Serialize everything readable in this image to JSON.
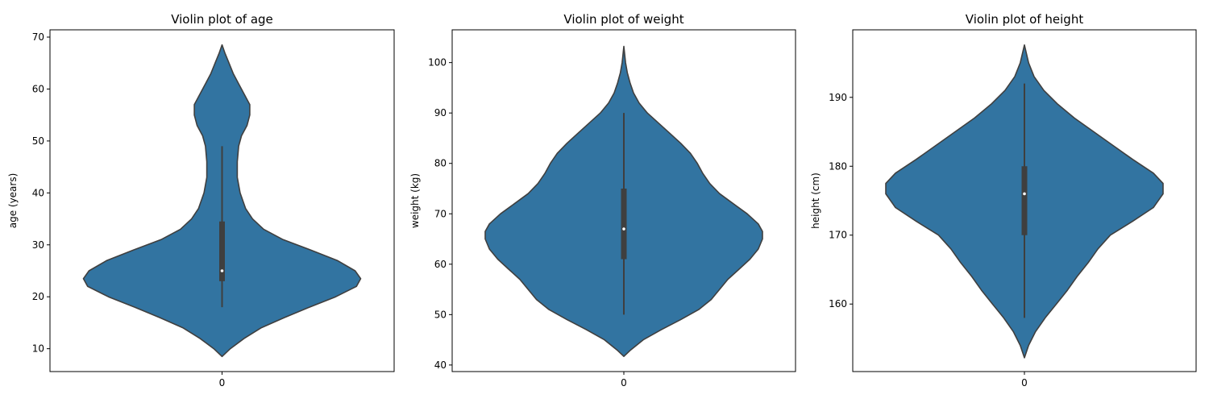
{
  "chart_data": [
    {
      "type": "violin",
      "title": "Violin plot of age",
      "xlabel": "",
      "ylabel": "age (years)",
      "categories": [
        "0"
      ],
      "ylim": [
        5.6,
        71.4
      ],
      "yticks": [
        10,
        20,
        30,
        40,
        50,
        60,
        70
      ],
      "kde_range": [
        8.5,
        68.5
      ],
      "density_profile": [
        {
          "y": 8.5,
          "w": 0.0
        },
        {
          "y": 10,
          "w": 0.06
        },
        {
          "y": 12,
          "w": 0.16
        },
        {
          "y": 14,
          "w": 0.28
        },
        {
          "y": 16,
          "w": 0.45
        },
        {
          "y": 18,
          "w": 0.63
        },
        {
          "y": 20,
          "w": 0.82
        },
        {
          "y": 22,
          "w": 0.97
        },
        {
          "y": 23.5,
          "w": 1.0
        },
        {
          "y": 25,
          "w": 0.96
        },
        {
          "y": 27,
          "w": 0.83
        },
        {
          "y": 29,
          "w": 0.64
        },
        {
          "y": 31,
          "w": 0.44
        },
        {
          "y": 33,
          "w": 0.3
        },
        {
          "y": 35,
          "w": 0.22
        },
        {
          "y": 37,
          "w": 0.17
        },
        {
          "y": 40,
          "w": 0.13
        },
        {
          "y": 43,
          "w": 0.11
        },
        {
          "y": 46,
          "w": 0.11
        },
        {
          "y": 49,
          "w": 0.12
        },
        {
          "y": 51,
          "w": 0.14
        },
        {
          "y": 53,
          "w": 0.18
        },
        {
          "y": 55,
          "w": 0.2
        },
        {
          "y": 57,
          "w": 0.2
        },
        {
          "y": 59,
          "w": 0.16
        },
        {
          "y": 61,
          "w": 0.12
        },
        {
          "y": 63,
          "w": 0.08
        },
        {
          "y": 65,
          "w": 0.05
        },
        {
          "y": 67,
          "w": 0.02
        },
        {
          "y": 68.5,
          "w": 0.0
        }
      ],
      "box": {
        "q1": 23,
        "median": 25,
        "q3": 34.5,
        "whisker_low": 18,
        "whisker_high": 49
      }
    },
    {
      "type": "violin",
      "title": "Violin plot of weight",
      "xlabel": "",
      "ylabel": "weight (kg)",
      "categories": [
        "0"
      ],
      "ylim": [
        38.7,
        106.5
      ],
      "yticks": [
        40,
        50,
        60,
        70,
        80,
        90,
        100
      ],
      "kde_range": [
        41.7,
        103.2
      ],
      "density_profile": [
        {
          "y": 41.7,
          "w": 0.0
        },
        {
          "y": 43,
          "w": 0.05
        },
        {
          "y": 45,
          "w": 0.14
        },
        {
          "y": 47,
          "w": 0.27
        },
        {
          "y": 49,
          "w": 0.41
        },
        {
          "y": 51,
          "w": 0.54
        },
        {
          "y": 53,
          "w": 0.63
        },
        {
          "y": 55,
          "w": 0.69
        },
        {
          "y": 57,
          "w": 0.75
        },
        {
          "y": 59,
          "w": 0.83
        },
        {
          "y": 61,
          "w": 0.91
        },
        {
          "y": 63,
          "w": 0.97
        },
        {
          "y": 65,
          "w": 1.0
        },
        {
          "y": 66.5,
          "w": 1.0
        },
        {
          "y": 68,
          "w": 0.97
        },
        {
          "y": 70,
          "w": 0.89
        },
        {
          "y": 72,
          "w": 0.79
        },
        {
          "y": 74,
          "w": 0.69
        },
        {
          "y": 76,
          "w": 0.62
        },
        {
          "y": 78,
          "w": 0.57
        },
        {
          "y": 80,
          "w": 0.53
        },
        {
          "y": 82,
          "w": 0.48
        },
        {
          "y": 84,
          "w": 0.41
        },
        {
          "y": 86,
          "w": 0.33
        },
        {
          "y": 88,
          "w": 0.25
        },
        {
          "y": 90,
          "w": 0.17
        },
        {
          "y": 92,
          "w": 0.11
        },
        {
          "y": 94,
          "w": 0.07
        },
        {
          "y": 96,
          "w": 0.045
        },
        {
          "y": 98,
          "w": 0.025
        },
        {
          "y": 100,
          "w": 0.012
        },
        {
          "y": 103.2,
          "w": 0.0
        }
      ],
      "box": {
        "q1": 61,
        "median": 67,
        "q3": 75,
        "whisker_low": 50,
        "whisker_high": 90
      }
    },
    {
      "type": "violin",
      "title": "Violin plot of height",
      "xlabel": "",
      "ylabel": "height (cm)",
      "categories": [
        "0"
      ],
      "ylim": [
        150.2,
        199.8
      ],
      "yticks": [
        160,
        170,
        180,
        190
      ],
      "kde_range": [
        152.2,
        197.6
      ],
      "density_profile": [
        {
          "y": 152.2,
          "w": 0.0
        },
        {
          "y": 154,
          "w": 0.03
        },
        {
          "y": 156,
          "w": 0.08
        },
        {
          "y": 158,
          "w": 0.15
        },
        {
          "y": 160,
          "w": 0.23
        },
        {
          "y": 162,
          "w": 0.31
        },
        {
          "y": 164,
          "w": 0.38
        },
        {
          "y": 166,
          "w": 0.46
        },
        {
          "y": 168,
          "w": 0.53
        },
        {
          "y": 170,
          "w": 0.62
        },
        {
          "y": 172,
          "w": 0.78
        },
        {
          "y": 174,
          "w": 0.93
        },
        {
          "y": 176,
          "w": 1.0
        },
        {
          "y": 177.5,
          "w": 1.0
        },
        {
          "y": 179,
          "w": 0.93
        },
        {
          "y": 181,
          "w": 0.78
        },
        {
          "y": 183,
          "w": 0.64
        },
        {
          "y": 185,
          "w": 0.5
        },
        {
          "y": 187,
          "w": 0.36
        },
        {
          "y": 189,
          "w": 0.24
        },
        {
          "y": 191,
          "w": 0.14
        },
        {
          "y": 193,
          "w": 0.07
        },
        {
          "y": 195,
          "w": 0.03
        },
        {
          "y": 197.6,
          "w": 0.0
        }
      ],
      "box": {
        "q1": 170,
        "median": 176,
        "q3": 180,
        "whisker_low": 158,
        "whisker_high": 192
      }
    }
  ],
  "colors": {
    "violin_fill": "#3274a1",
    "violin_edge": "#3f3f3f",
    "box": "#3f3f3f",
    "median_dot": "#ffffff",
    "axes": "#000000"
  }
}
